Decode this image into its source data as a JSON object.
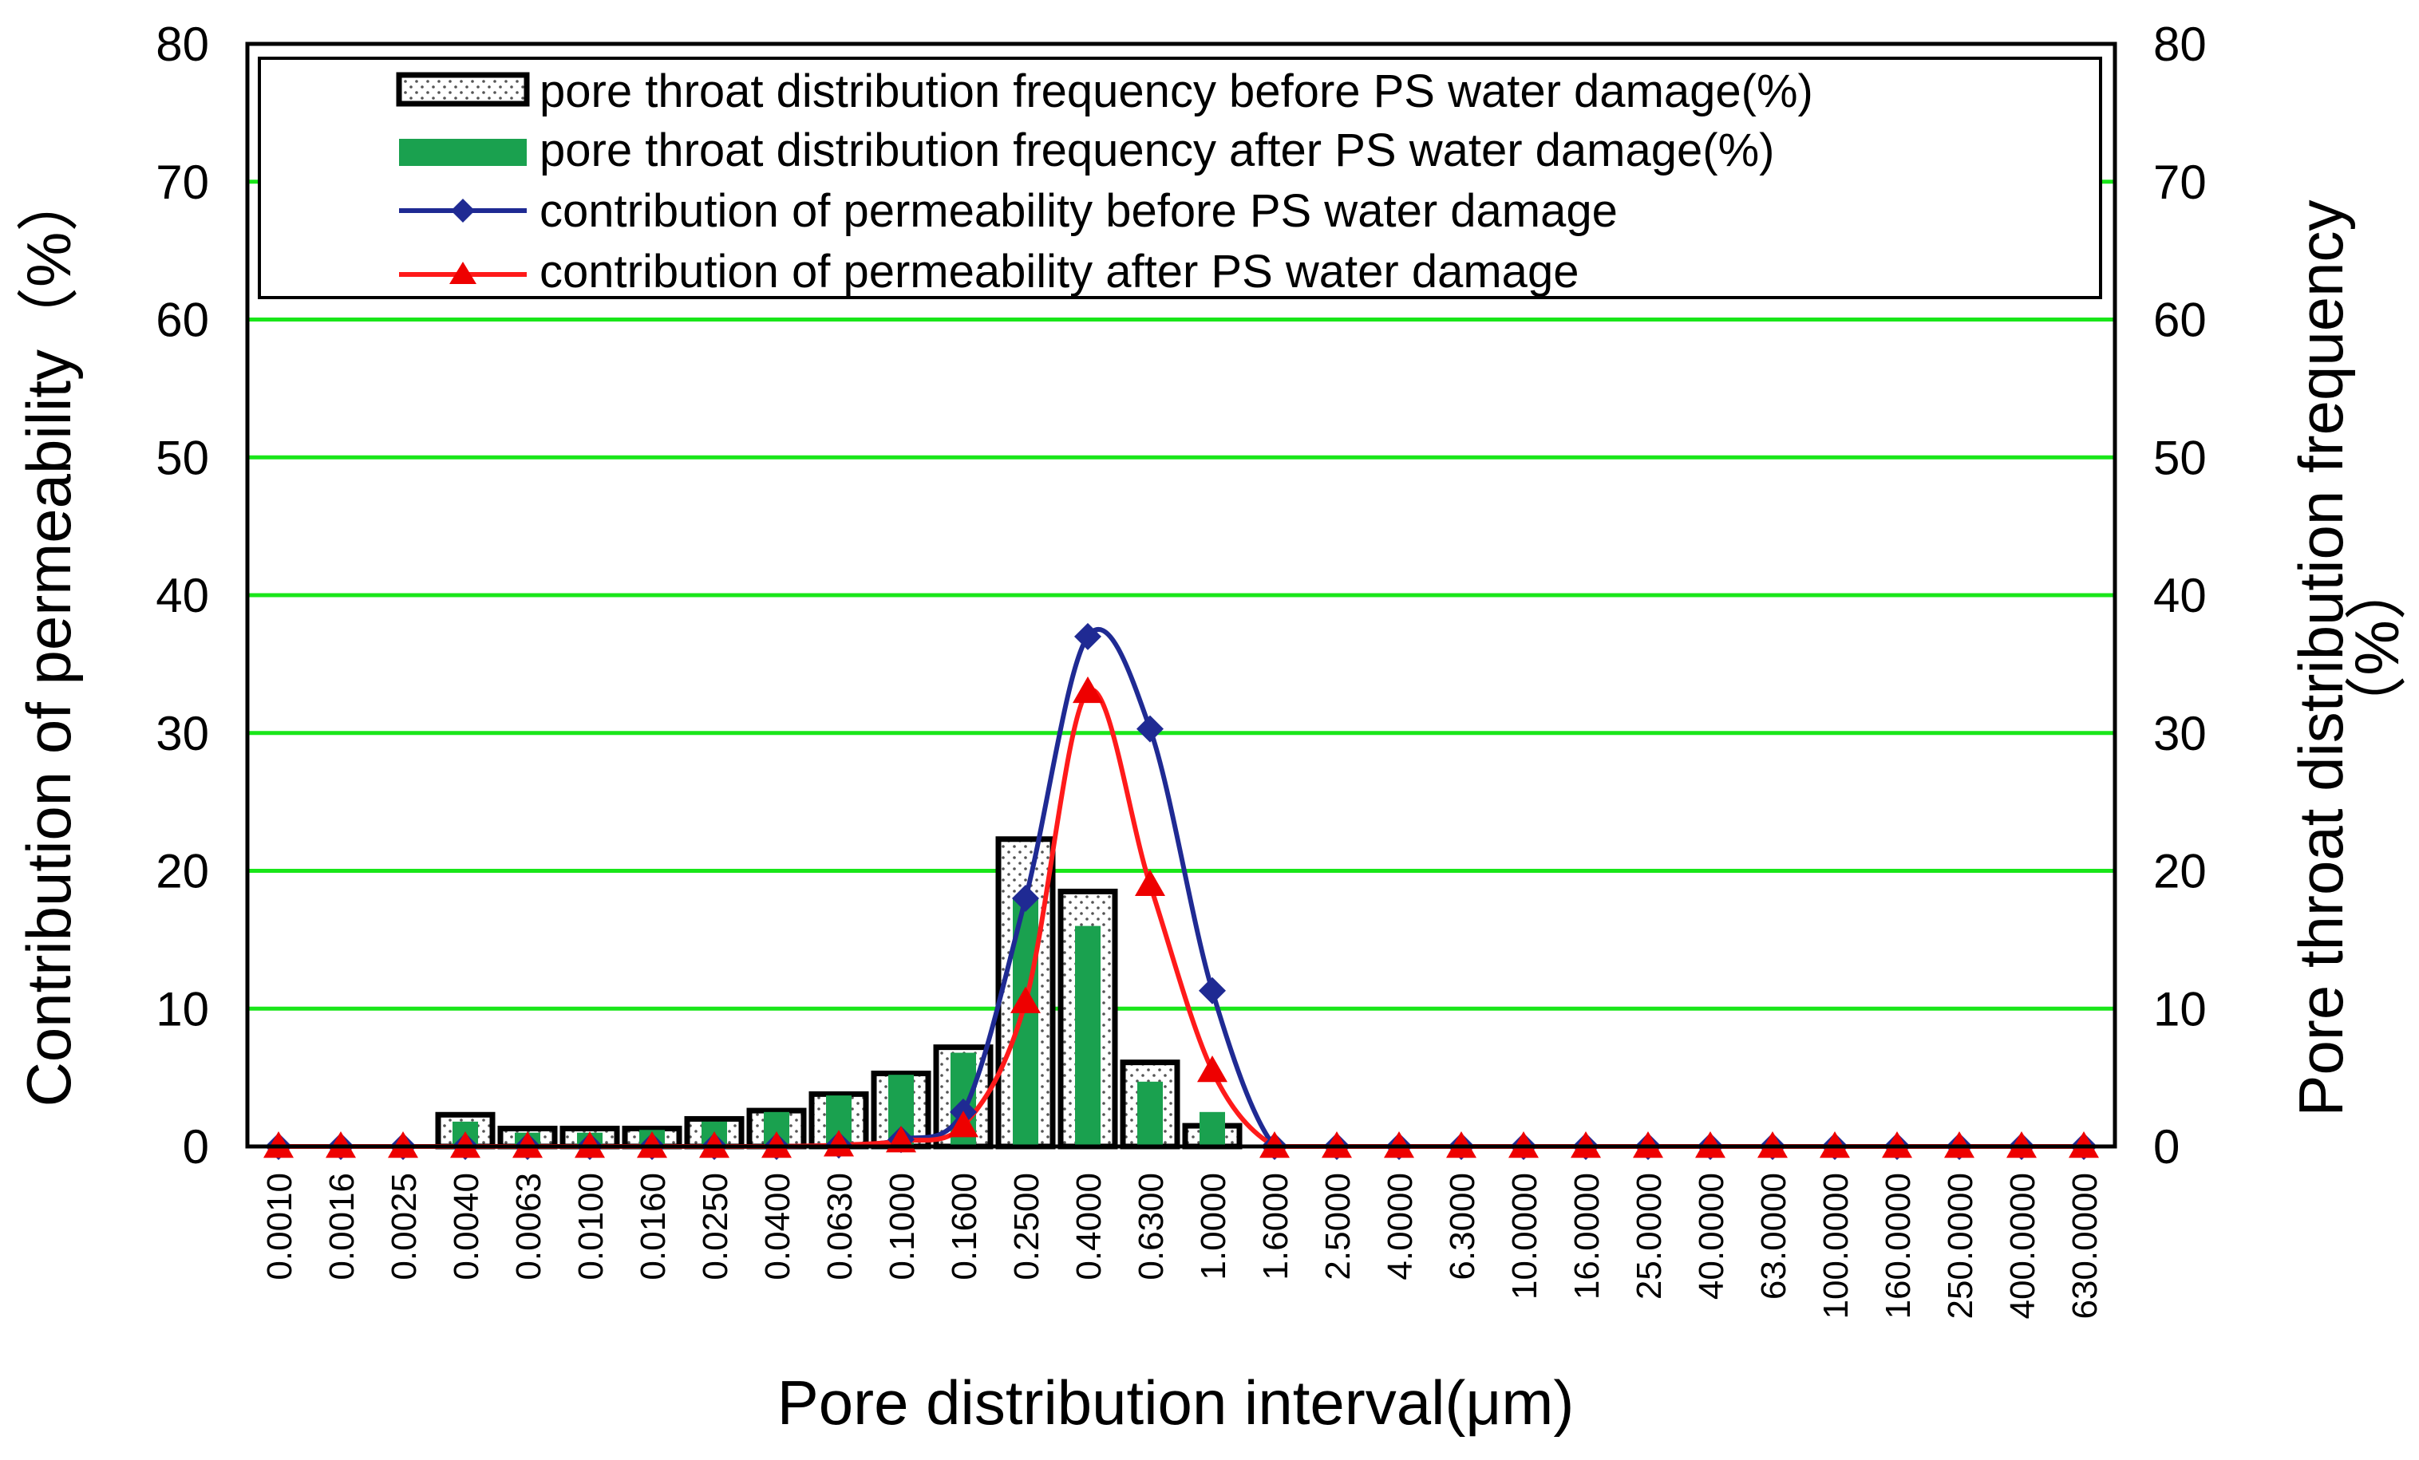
{
  "chart_data": {
    "type": "bar",
    "title": "",
    "xlabel": "Pore distribution interval(μm)",
    "ylabel": "Contribution of permeability（%）",
    "ylabel_right_line1": "Pore throat distribution frequency",
    "ylabel_right_line2": "（%）",
    "ylim": [
      0,
      80
    ],
    "ylim_right": [
      0,
      80
    ],
    "y_ticks": [
      "0",
      "10",
      "20",
      "30",
      "40",
      "50",
      "60",
      "70",
      "80"
    ],
    "gridlines": "horizontal",
    "legend_position": "top",
    "categories": [
      "0.0010",
      "0.0016",
      "0.0025",
      "0.0040",
      "0.0063",
      "0.0100",
      "0.0160",
      "0.0250",
      "0.0400",
      "0.0630",
      "0.1000",
      "0.1600",
      "0.2500",
      "0.4000",
      "0.6300",
      "1.0000",
      "1.6000",
      "2.5000",
      "4.0000",
      "6.3000",
      "10.0000",
      "16.0000",
      "25.0000",
      "40.0000",
      "63.0000",
      "100.0000",
      "160.0000",
      "250.0000",
      "400.0000",
      "630.0000"
    ],
    "series": [
      {
        "name": "pore throat distribution frequency before PS water damage(%)",
        "kind": "bar",
        "axis": "right",
        "values": [
          0,
          0,
          0,
          2.3,
          1.3,
          1.3,
          1.3,
          2.0,
          2.6,
          3.8,
          5.3,
          7.2,
          22.3,
          18.5,
          6.1,
          1.5,
          0,
          0,
          0,
          0,
          0,
          0,
          0,
          0,
          0,
          0,
          0,
          0,
          0,
          0
        ]
      },
      {
        "name": "pore throat distribution frequency after PS water damage(%)",
        "kind": "bar",
        "axis": "right",
        "values": [
          0,
          0,
          0,
          1.8,
          1.0,
          1.0,
          1.2,
          1.8,
          2.5,
          3.7,
          5.2,
          6.8,
          18.0,
          16.0,
          4.7,
          2.5,
          0,
          0,
          0,
          0,
          0,
          0,
          0,
          0,
          0,
          0,
          0,
          0,
          0,
          0
        ]
      },
      {
        "name": "contribution of permeability before PS water damage",
        "kind": "line",
        "axis": "left",
        "values": [
          0,
          0,
          0,
          0,
          0,
          0,
          0,
          0,
          0,
          0.1,
          0.5,
          2.5,
          18.0,
          37.0,
          30.3,
          11.3,
          0,
          0,
          0,
          0,
          0,
          0,
          0,
          0,
          0,
          0,
          0,
          0,
          0,
          0
        ]
      },
      {
        "name": "contribution of permeability after PS water damage",
        "kind": "line",
        "axis": "left",
        "values": [
          0,
          0,
          0,
          0,
          0,
          0,
          0,
          0,
          0,
          0.1,
          0.4,
          1.5,
          10.5,
          33.0,
          19.0,
          5.5,
          0,
          0,
          0,
          0,
          0,
          0,
          0,
          0,
          0,
          0,
          0,
          0,
          0,
          0
        ]
      }
    ],
    "colors": {
      "grid": "#19e619",
      "bar_before_edge": "#000000",
      "bar_before_fill": "#ffffff",
      "bar_before_dot": "#555555",
      "bar_after": "#1aa14f",
      "line_before": "#1f2a93",
      "line_after": "#ff1a1a",
      "marker_after": "#ee0000",
      "axis": "#000000"
    },
    "markers": {
      "line_before": "diamond",
      "line_after": "triangle"
    }
  }
}
